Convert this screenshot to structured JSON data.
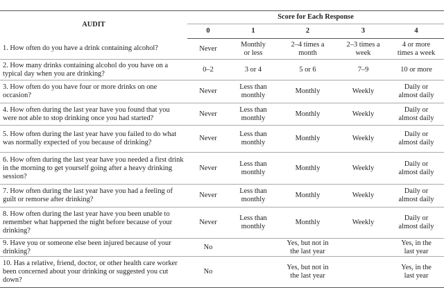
{
  "header": {
    "audit": "AUDIT",
    "score_heading": "Score for Each Response",
    "scores": [
      "0",
      "1",
      "2",
      "3",
      "4"
    ]
  },
  "rows": [
    {
      "question": "1. How often do you have a drink containing alcohol?",
      "answers": [
        "Never",
        "Monthly or less",
        "2–4 times a month",
        "2–3 times a week",
        "4 or more times a week"
      ]
    },
    {
      "question": "2. How many drinks containing alcohol do you have on a typical day when you are drinking?",
      "answers": [
        "0–2",
        "3 or 4",
        "5 or 6",
        "7–9",
        "10 or more"
      ]
    },
    {
      "question": "3. How often do you have four or more drinks on one occasion?",
      "answers": [
        "Never",
        "Less than monthly",
        "Monthly",
        "Weekly",
        "Daily or almost daily"
      ]
    },
    {
      "question": "4. How often during the last year have you found that you were not able to stop drinking once you had started?",
      "answers": [
        "Never",
        "Less than monthly",
        "Monthly",
        "Weekly",
        "Daily or almost daily"
      ]
    },
    {
      "question": "5. How often during the last year have you failed to do what was normally expected of you because of drinking?",
      "answers": [
        "Never",
        "Less than monthly",
        "Monthly",
        "Weekly",
        "Daily or almost daily"
      ]
    },
    {
      "question": "6. How often during the last year have you needed a first drink in the morning to get yourself going after a heavy drinking session?",
      "answers": [
        "Never",
        "Less than monthly",
        "Monthly",
        "Weekly",
        "Daily or almost daily"
      ]
    },
    {
      "question": "7. How often during the last year have you had a feeling of guilt or remorse after drinking?",
      "answers": [
        "Never",
        "Less than monthly",
        "Monthly",
        "Weekly",
        "Daily or almost daily"
      ]
    },
    {
      "question": "8. How often during the last year have you been unable to remember what happened the night before because of your drinking?",
      "answers": [
        "Never",
        "Less than monthly",
        "Monthly",
        "Weekly",
        "Daily or almost daily"
      ]
    },
    {
      "question": "9. Have you or someone else been injured because of your drinking?",
      "answers": [
        "No",
        null,
        "Yes, but not in the last year",
        null,
        "Yes, in the last year"
      ]
    },
    {
      "question": "10. Has a relative, friend, doctor, or other health care worker been concerned about your drinking or suggested you cut down?",
      "answers": [
        "No",
        null,
        "Yes, but not in the last year",
        null,
        "Yes, in the last year"
      ]
    }
  ]
}
